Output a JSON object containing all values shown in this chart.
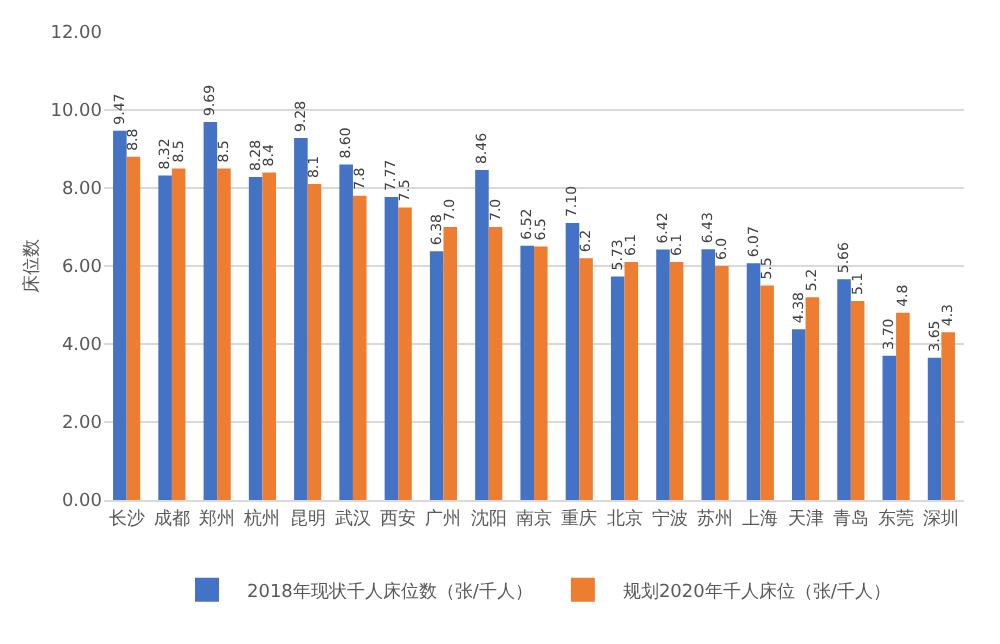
{
  "chart_data": {
    "type": "bar",
    "ylabel": "床位数",
    "categories": [
      "长沙",
      "成都",
      "郑州",
      "杭州",
      "昆明",
      "武汉",
      "西安",
      "广州",
      "沈阳",
      "南京",
      "重庆",
      "北京",
      "宁波",
      "苏州",
      "上海",
      "天津",
      "青岛",
      "东莞",
      "深圳"
    ],
    "series": [
      {
        "name": "2018年现状千人床位数（张/千人）",
        "color": "#4472c4",
        "values": [
          9.47,
          8.32,
          9.69,
          8.28,
          9.28,
          8.6,
          7.77,
          6.38,
          8.46,
          6.52,
          7.1,
          5.73,
          6.42,
          6.43,
          6.07,
          4.38,
          5.66,
          3.7,
          3.65
        ],
        "value_labels": [
          "9.47",
          "8.32",
          "9.69",
          "8.28",
          "9.28",
          "8.60",
          "7.77",
          "6.38",
          "8.46",
          "6.52",
          "7.10",
          "5.73",
          "6.42",
          "6.43",
          "6.07",
          "4.38",
          "5.66",
          "3.70",
          "3.65"
        ]
      },
      {
        "name": "规划2020年千人床位（张/千人）",
        "color": "#ed7d31",
        "values": [
          8.8,
          8.5,
          8.5,
          8.4,
          8.1,
          7.8,
          7.5,
          7.0,
          7.0,
          6.5,
          6.2,
          6.1,
          6.1,
          6.0,
          5.5,
          5.2,
          5.1,
          4.8,
          4.3
        ],
        "value_labels": [
          "8.8",
          "8.5",
          "8.5",
          "8.4",
          "8.1",
          "7.8",
          "7.5",
          "7.0",
          "7.0",
          "6.5",
          "6.2",
          "6.1",
          "6.1",
          "6.0",
          "5.5",
          "5.2",
          "5.1",
          "4.8",
          "4.3"
        ]
      }
    ],
    "ylim": [
      0,
      12
    ],
    "yticks": [
      {
        "value": 0,
        "label": "0.00"
      },
      {
        "value": 2,
        "label": "2.00"
      },
      {
        "value": 4,
        "label": "4.00"
      },
      {
        "value": 6,
        "label": "6.00"
      },
      {
        "value": 8,
        "label": "8.00"
      },
      {
        "value": 10,
        "label": "10.00"
      },
      {
        "value": 12,
        "label": "12.00"
      }
    ],
    "grid": "y",
    "legend": "bottom"
  }
}
